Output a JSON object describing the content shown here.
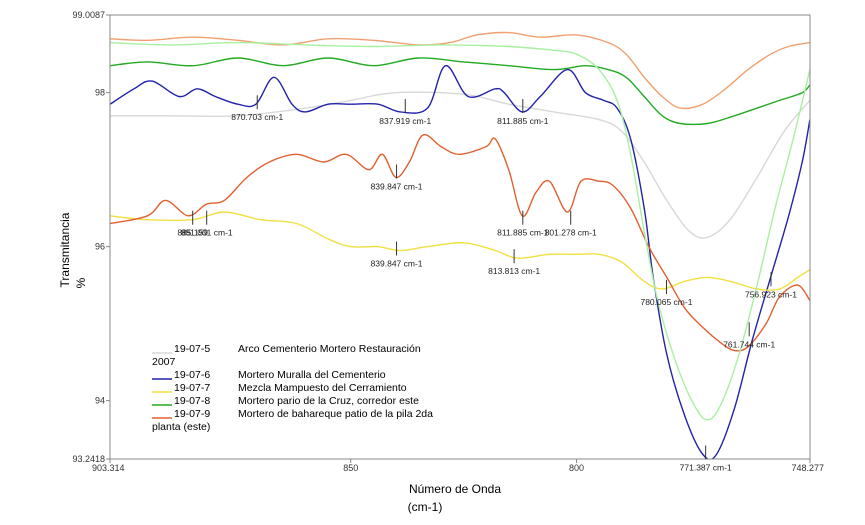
{
  "chart_data": {
    "type": "line",
    "xlabel_line1": "Número de Onda",
    "xlabel_line2": "(cm-1)",
    "ylabel_line1": "Transmitancia",
    "ylabel_line2": "%",
    "xlim": [
      903.314,
      748.277
    ],
    "ylim": [
      93.2418,
      99.0087
    ],
    "x_ticks": [
      {
        "value": 903.314,
        "label": "903.314"
      },
      {
        "value": 850,
        "label": "850"
      },
      {
        "value": 800,
        "label": "800"
      },
      {
        "value": 748.277,
        "label": "748.277"
      }
    ],
    "y_ticks": [
      {
        "value": 99.0087,
        "label": "99.0087"
      },
      {
        "value": 98,
        "label": "98"
      },
      {
        "value": 96,
        "label": "96"
      },
      {
        "value": 94,
        "label": "94"
      },
      {
        "value": 93.2418,
        "label": "93.2418"
      }
    ],
    "series": [
      {
        "name": "19-07-5",
        "color": "#d8d8d8",
        "points": [
          [
            903.3,
            97.7
          ],
          [
            890,
            97.7
          ],
          [
            875,
            97.7
          ],
          [
            860,
            97.8
          ],
          [
            850,
            97.9
          ],
          [
            840,
            98.0
          ],
          [
            825,
            97.98
          ],
          [
            815,
            97.85
          ],
          [
            805,
            97.75
          ],
          [
            795,
            97.65
          ],
          [
            790,
            97.5
          ],
          [
            785,
            97.1
          ],
          [
            780,
            96.6
          ],
          [
            775,
            96.2
          ],
          [
            771,
            96.12
          ],
          [
            766,
            96.35
          ],
          [
            760,
            96.9
          ],
          [
            754,
            97.5
          ],
          [
            748.3,
            97.9
          ]
        ]
      },
      {
        "name": "19-07-6",
        "color": "#2222aa",
        "points": [
          [
            903.3,
            97.85
          ],
          [
            898,
            98.05
          ],
          [
            894,
            98.15
          ],
          [
            888,
            97.95
          ],
          [
            884,
            98.05
          ],
          [
            880,
            97.95
          ],
          [
            875,
            97.85
          ],
          [
            871,
            97.85
          ],
          [
            867,
            98.2
          ],
          [
            863,
            97.85
          ],
          [
            860,
            97.75
          ],
          [
            855,
            97.85
          ],
          [
            850,
            97.85
          ],
          [
            844,
            97.85
          ],
          [
            839,
            97.75
          ],
          [
            833,
            97.8
          ],
          [
            829,
            98.35
          ],
          [
            824,
            97.95
          ],
          [
            818,
            98.05
          ],
          [
            816,
            98.0
          ],
          [
            812,
            97.75
          ],
          [
            808,
            97.95
          ],
          [
            802,
            98.3
          ],
          [
            798,
            98.0
          ],
          [
            794,
            97.9
          ],
          [
            791,
            97.8
          ],
          [
            788,
            97.4
          ],
          [
            785,
            96.5
          ],
          [
            783,
            95.6
          ],
          [
            780,
            94.6
          ],
          [
            776,
            93.8
          ],
          [
            772,
            93.3
          ],
          [
            769,
            93.3
          ],
          [
            765,
            93.9
          ],
          [
            761,
            94.8
          ],
          [
            757,
            95.6
          ],
          [
            753,
            96.4
          ],
          [
            750,
            97.1
          ],
          [
            748.3,
            97.65
          ]
        ]
      },
      {
        "name": "19-07-7",
        "color": "#f0e040",
        "points": [
          [
            903.3,
            96.4
          ],
          [
            895,
            96.35
          ],
          [
            885,
            96.35
          ],
          [
            878,
            96.45
          ],
          [
            870,
            96.35
          ],
          [
            862,
            96.3
          ],
          [
            855,
            96.1
          ],
          [
            850,
            96.0
          ],
          [
            844,
            96.0
          ],
          [
            839,
            95.95
          ],
          [
            833,
            96.0
          ],
          [
            825,
            96.05
          ],
          [
            818,
            95.95
          ],
          [
            813,
            95.85
          ],
          [
            806,
            95.9
          ],
          [
            800,
            95.9
          ],
          [
            795,
            95.9
          ],
          [
            790,
            95.8
          ],
          [
            785,
            95.55
          ],
          [
            781,
            95.45
          ],
          [
            776,
            95.55
          ],
          [
            771,
            95.6
          ],
          [
            766,
            95.55
          ],
          [
            760,
            95.45
          ],
          [
            755,
            95.45
          ],
          [
            751,
            95.6
          ],
          [
            748.3,
            95.7
          ]
        ]
      },
      {
        "name": "19-07-8",
        "color": "#22aa22",
        "points": [
          [
            903.3,
            98.35
          ],
          [
            895,
            98.4
          ],
          [
            885,
            98.35
          ],
          [
            875,
            98.45
          ],
          [
            865,
            98.35
          ],
          [
            855,
            98.45
          ],
          [
            845,
            98.35
          ],
          [
            835,
            98.45
          ],
          [
            825,
            98.4
          ],
          [
            815,
            98.35
          ],
          [
            805,
            98.3
          ],
          [
            798,
            98.35
          ],
          [
            793,
            98.3
          ],
          [
            789,
            98.2
          ],
          [
            785,
            97.95
          ],
          [
            781,
            97.7
          ],
          [
            777,
            97.6
          ],
          [
            771,
            97.6
          ],
          [
            765,
            97.7
          ],
          [
            760,
            97.8
          ],
          [
            755,
            97.9
          ],
          [
            750,
            98.0
          ],
          [
            748.3,
            98.1
          ]
        ]
      },
      {
        "name": "19-07-9",
        "color": "#e06030",
        "points": [
          [
            903.3,
            96.3
          ],
          [
            895,
            96.4
          ],
          [
            891,
            96.6
          ],
          [
            886,
            96.4
          ],
          [
            882,
            96.55
          ],
          [
            878,
            96.6
          ],
          [
            873,
            96.9
          ],
          [
            868,
            97.1
          ],
          [
            862,
            97.2
          ],
          [
            856,
            97.1
          ],
          [
            851,
            97.2
          ],
          [
            846,
            97.0
          ],
          [
            843,
            97.2
          ],
          [
            840,
            96.9
          ],
          [
            837,
            97.1
          ],
          [
            834,
            97.45
          ],
          [
            830,
            97.3
          ],
          [
            826,
            97.2
          ],
          [
            820,
            97.3
          ],
          [
            818,
            97.4
          ],
          [
            815,
            97.0
          ],
          [
            812,
            96.4
          ],
          [
            809,
            96.7
          ],
          [
            806,
            96.85
          ],
          [
            802,
            96.45
          ],
          [
            799,
            96.85
          ],
          [
            795,
            96.85
          ],
          [
            792,
            96.8
          ],
          [
            788,
            96.5
          ],
          [
            784,
            96.0
          ],
          [
            780,
            95.6
          ],
          [
            776,
            95.2
          ],
          [
            772,
            94.95
          ],
          [
            768,
            94.75
          ],
          [
            765,
            94.65
          ],
          [
            762,
            94.7
          ],
          [
            758,
            95.0
          ],
          [
            755,
            95.35
          ],
          [
            751,
            95.5
          ],
          [
            748.3,
            95.3
          ]
        ]
      },
      {
        "name": "",
        "color": "#f0a070",
        "points": [
          [
            903.3,
            98.7
          ],
          [
            895,
            98.68
          ],
          [
            885,
            98.72
          ],
          [
            875,
            98.68
          ],
          [
            865,
            98.62
          ],
          [
            855,
            98.7
          ],
          [
            845,
            98.68
          ],
          [
            835,
            98.62
          ],
          [
            828,
            98.65
          ],
          [
            822,
            98.75
          ],
          [
            815,
            98.78
          ],
          [
            808,
            98.72
          ],
          [
            800,
            98.75
          ],
          [
            793,
            98.65
          ],
          [
            789,
            98.5
          ],
          [
            785,
            98.2
          ],
          [
            781,
            97.95
          ],
          [
            777,
            97.8
          ],
          [
            772,
            97.85
          ],
          [
            767,
            98.05
          ],
          [
            762,
            98.3
          ],
          [
            757,
            98.5
          ],
          [
            753,
            98.6
          ],
          [
            748.3,
            98.65
          ]
        ]
      },
      {
        "name": "",
        "color": "#a8f0a0",
        "points": [
          [
            903.3,
            98.65
          ],
          [
            890,
            98.62
          ],
          [
            875,
            98.65
          ],
          [
            860,
            98.62
          ],
          [
            845,
            98.6
          ],
          [
            830,
            98.62
          ],
          [
            815,
            98.6
          ],
          [
            805,
            98.55
          ],
          [
            800,
            98.5
          ],
          [
            795,
            98.3
          ],
          [
            791,
            97.9
          ],
          [
            788,
            97.2
          ],
          [
            785,
            96.2
          ],
          [
            782,
            95.3
          ],
          [
            778,
            94.5
          ],
          [
            774,
            93.95
          ],
          [
            771,
            93.75
          ],
          [
            768,
            93.95
          ],
          [
            764,
            94.6
          ],
          [
            760,
            95.5
          ],
          [
            756,
            96.5
          ],
          [
            752,
            97.4
          ],
          [
            748.3,
            98.3
          ]
        ]
      }
    ],
    "peak_labels": [
      {
        "x": 885.0,
        "y": 96.35,
        "text": "885.159"
      },
      {
        "x": 881.9,
        "y": 96.35,
        "text": "881.001 cm-1"
      },
      {
        "x": 870.703,
        "y": 97.85,
        "text": "870.703 cm-1"
      },
      {
        "x": 837.919,
        "y": 97.8,
        "text": "837.919 cm-1"
      },
      {
        "x": 811.885,
        "y": 97.8,
        "text": "811.885 cm-1"
      },
      {
        "x": 839.847,
        "y": 96.95,
        "text": "839.847 cm-1"
      },
      {
        "x": 811.885,
        "y": 96.35,
        "text": "811.885 cm-1"
      },
      {
        "x": 801.278,
        "y": 96.35,
        "text": "801.278 cm-1"
      },
      {
        "x": 839.847,
        "y": 95.95,
        "text": "839.847 cm-1"
      },
      {
        "x": 813.813,
        "y": 95.85,
        "text": "813.813 cm-1"
      },
      {
        "x": 780.065,
        "y": 95.45,
        "text": "780.065 cm-1"
      },
      {
        "x": 756.923,
        "y": 95.55,
        "text": "756.923 cm-1"
      },
      {
        "x": 761.744,
        "y": 94.9,
        "text": "761.744 cm-1"
      },
      {
        "x": 771.387,
        "y": 93.3,
        "text": "771.387 cm-1"
      }
    ],
    "legend": {
      "placement": "bottom-left",
      "entries": [
        {
          "id": "19-07-5",
          "description": "Arco Cementerio Mortero Restauración",
          "continuation": "2007",
          "color": "#d8d8d8"
        },
        {
          "id": "19-07-6",
          "description": "Mortero Muralla del Cementerio",
          "continuation": "",
          "color": "#2222aa"
        },
        {
          "id": "19-07-7",
          "description": "Mezcla Mampuesto del Cerramiento",
          "continuation": "",
          "color": "#f0e040"
        },
        {
          "id": "19-07-8",
          "description": "Mortero pario de la Cruz,  corredor este",
          "continuation": "",
          "color": "#22aa22"
        },
        {
          "id": "19-07-9",
          "description": "Mortero de bahareque patio de la pila 2da",
          "continuation": "planta (este)",
          "color": "#e06030"
        }
      ]
    },
    "grid": false
  }
}
